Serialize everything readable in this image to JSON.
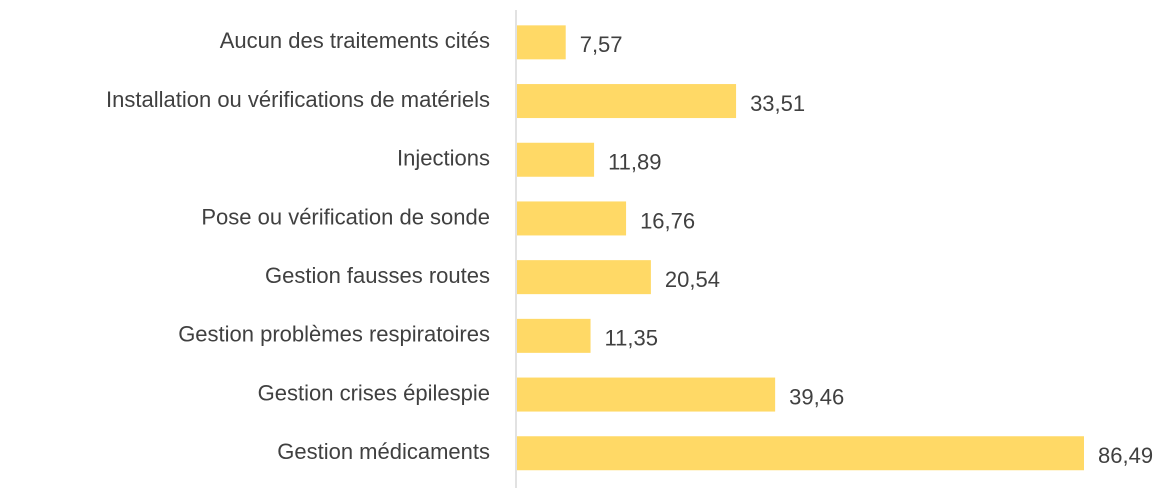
{
  "chart_data": {
    "type": "bar",
    "orientation": "horizontal",
    "categories": [
      "Aucun des traitements cités",
      "Installation ou vérifications de matériels",
      "Injections",
      "Pose ou vérification de sonde",
      "Gestion fausses routes",
      "Gestion problèmes respiratoires",
      "Gestion crises épilespie",
      "Gestion médicaments"
    ],
    "values": [
      7.57,
      33.51,
      11.89,
      16.76,
      20.54,
      11.35,
      39.46,
      86.49
    ],
    "value_labels": [
      "7,57",
      "33,51",
      "11,89",
      "16,76",
      "20,54",
      "11,35",
      "39,46",
      "86,49"
    ],
    "color": "#ffd966"
  }
}
